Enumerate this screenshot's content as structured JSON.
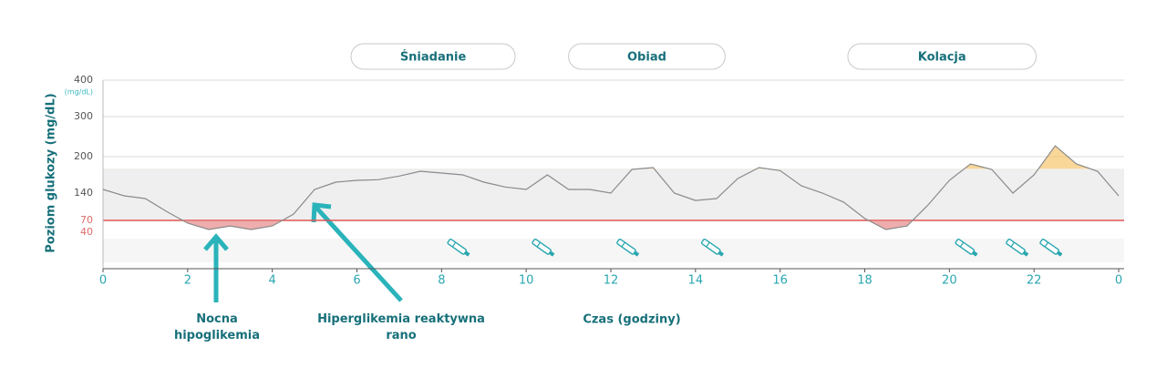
{
  "chart_data": {
    "type": "line",
    "y_label": "Poziom glukozy (mg/dL)",
    "y_unit": "(mg/dL)",
    "x_label": "Czas (godziny)",
    "x": [
      0,
      0.5,
      1,
      1.5,
      2,
      2.5,
      3,
      3.5,
      4,
      4.5,
      5,
      5.5,
      6,
      6.5,
      7,
      7.5,
      8,
      8.5,
      9,
      9.5,
      10,
      10.5,
      11,
      11.5,
      12,
      12.5,
      13,
      13.5,
      14,
      14.5,
      15,
      15.5,
      16,
      16.5,
      17,
      17.5,
      18,
      18.5,
      19,
      19.5,
      20,
      20.5,
      21,
      21.5,
      22,
      22.5,
      23,
      23.5,
      24
    ],
    "values": [
      146,
      133,
      126,
      93,
      63,
      47,
      56,
      47,
      56,
      86,
      146,
      158,
      161,
      162,
      168,
      176,
      173,
      170,
      158,
      150,
      146,
      170,
      146,
      146,
      140,
      179,
      182,
      140,
      121,
      126,
      164,
      182,
      177,
      152,
      140,
      117,
      75,
      47,
      56,
      110,
      161,
      188,
      179,
      140,
      170,
      227,
      188,
      176,
      133
    ],
    "color": "#8a8a8a",
    "low": 70,
    "high": 180,
    "low_color": "#e88a8a",
    "high_color": "#f6c66e",
    "xlim": [
      0,
      24
    ],
    "xticks": [
      0,
      2,
      4,
      6,
      8,
      10,
      12,
      14,
      16,
      18,
      20,
      22,
      {
        "value": 24,
        "label": "0"
      }
    ],
    "ylim": [
      0,
      400
    ],
    "yticks": [
      40,
      70,
      140,
      200,
      300,
      400
    ],
    "grid": true,
    "meals": [
      {
        "label": "Śniadanie",
        "start": 5.86,
        "end": 9.74
      },
      {
        "label": "Obiad",
        "start": 11.0,
        "end": 14.7
      },
      {
        "label": "Kolacja",
        "start": 17.6,
        "end": 22.05
      }
    ],
    "injections": [
      8.4,
      10.4,
      12.4,
      14.4,
      20.4,
      21.6,
      22.4
    ],
    "annotations": [
      "Nocna hipoglikemia",
      "Hiperglikemia reaktywna rano"
    ]
  }
}
